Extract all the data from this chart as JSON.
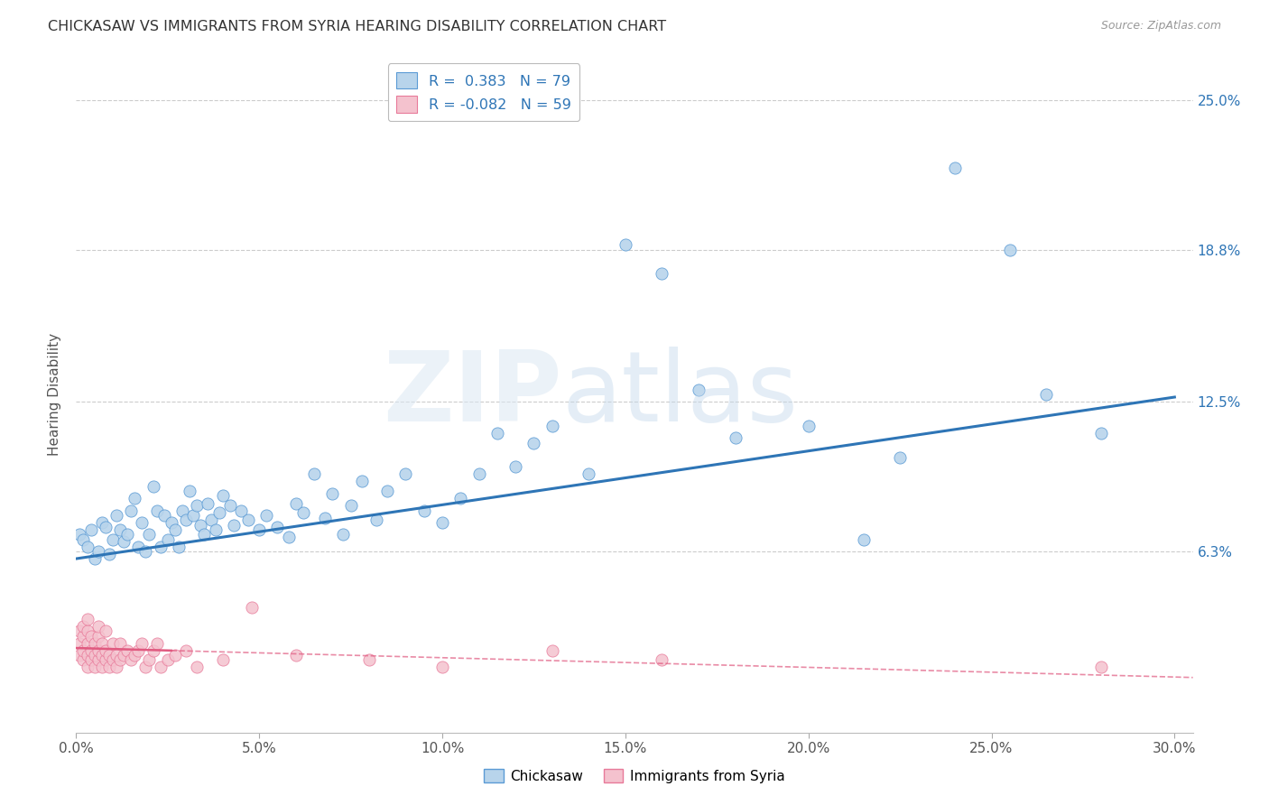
{
  "title": "CHICKASAW VS IMMIGRANTS FROM SYRIA HEARING DISABILITY CORRELATION CHART",
  "source": "Source: ZipAtlas.com",
  "xlim": [
    0.0,
    0.305
  ],
  "ylim": [
    -0.012,
    0.268
  ],
  "chickasaw_R": 0.383,
  "chickasaw_N": 79,
  "syria_R": -0.082,
  "syria_N": 59,
  "chickasaw_color": "#b8d4eb",
  "chickasaw_edge_color": "#5b9bd5",
  "chickasaw_line_color": "#2e75b6",
  "syria_color": "#f4c2ce",
  "syria_edge_color": "#e87a9a",
  "syria_line_color": "#e05a80",
  "legend_chickasaw": "Chickasaw",
  "legend_syria": "Immigrants from Syria",
  "ylabel": "Hearing Disability",
  "background_color": "#ffffff",
  "grid_color": "#cccccc",
  "ytick_vals": [
    0.063,
    0.125,
    0.188,
    0.25
  ],
  "ytick_labels": [
    "6.3%",
    "12.5%",
    "18.8%",
    "25.0%"
  ],
  "xtick_vals": [
    0.0,
    0.05,
    0.1,
    0.15,
    0.2,
    0.25,
    0.3
  ],
  "xtick_labels": [
    "0.0%",
    "5.0%",
    "10.0%",
    "15.0%",
    "20.0%",
    "25.0%",
    "30.0%"
  ],
  "chickasaw_x": [
    0.001,
    0.002,
    0.003,
    0.004,
    0.005,
    0.006,
    0.007,
    0.008,
    0.009,
    0.01,
    0.011,
    0.012,
    0.013,
    0.014,
    0.015,
    0.016,
    0.017,
    0.018,
    0.019,
    0.02,
    0.021,
    0.022,
    0.023,
    0.024,
    0.025,
    0.026,
    0.027,
    0.028,
    0.029,
    0.03,
    0.031,
    0.032,
    0.033,
    0.034,
    0.035,
    0.036,
    0.037,
    0.038,
    0.039,
    0.04,
    0.042,
    0.043,
    0.045,
    0.047,
    0.05,
    0.052,
    0.055,
    0.058,
    0.06,
    0.062,
    0.065,
    0.068,
    0.07,
    0.073,
    0.075,
    0.078,
    0.082,
    0.085,
    0.09,
    0.095,
    0.1,
    0.105,
    0.11,
    0.115,
    0.12,
    0.125,
    0.13,
    0.14,
    0.15,
    0.16,
    0.17,
    0.18,
    0.2,
    0.215,
    0.225,
    0.24,
    0.255,
    0.265,
    0.28
  ],
  "chickasaw_y": [
    0.07,
    0.068,
    0.065,
    0.072,
    0.06,
    0.063,
    0.075,
    0.073,
    0.062,
    0.068,
    0.078,
    0.072,
    0.067,
    0.07,
    0.08,
    0.085,
    0.065,
    0.075,
    0.063,
    0.07,
    0.09,
    0.08,
    0.065,
    0.078,
    0.068,
    0.075,
    0.072,
    0.065,
    0.08,
    0.076,
    0.088,
    0.078,
    0.082,
    0.074,
    0.07,
    0.083,
    0.076,
    0.072,
    0.079,
    0.086,
    0.082,
    0.074,
    0.08,
    0.076,
    0.072,
    0.078,
    0.073,
    0.069,
    0.083,
    0.079,
    0.095,
    0.077,
    0.087,
    0.07,
    0.082,
    0.092,
    0.076,
    0.088,
    0.095,
    0.08,
    0.075,
    0.085,
    0.095,
    0.112,
    0.098,
    0.108,
    0.115,
    0.095,
    0.19,
    0.178,
    0.13,
    0.11,
    0.115,
    0.068,
    0.102,
    0.222,
    0.188,
    0.128,
    0.112
  ],
  "syria_x": [
    0.001,
    0.001,
    0.001,
    0.002,
    0.002,
    0.002,
    0.002,
    0.003,
    0.003,
    0.003,
    0.003,
    0.003,
    0.004,
    0.004,
    0.004,
    0.005,
    0.005,
    0.005,
    0.006,
    0.006,
    0.006,
    0.006,
    0.007,
    0.007,
    0.007,
    0.008,
    0.008,
    0.008,
    0.009,
    0.009,
    0.01,
    0.01,
    0.011,
    0.011,
    0.012,
    0.012,
    0.013,
    0.014,
    0.015,
    0.016,
    0.017,
    0.018,
    0.019,
    0.02,
    0.021,
    0.022,
    0.023,
    0.025,
    0.027,
    0.03,
    0.033,
    0.04,
    0.048,
    0.06,
    0.08,
    0.1,
    0.13,
    0.16,
    0.28
  ],
  "syria_y": [
    0.02,
    0.025,
    0.03,
    0.018,
    0.022,
    0.028,
    0.032,
    0.015,
    0.02,
    0.025,
    0.03,
    0.035,
    0.018,
    0.022,
    0.028,
    0.015,
    0.02,
    0.025,
    0.018,
    0.022,
    0.028,
    0.032,
    0.015,
    0.02,
    0.025,
    0.018,
    0.022,
    0.03,
    0.015,
    0.02,
    0.018,
    0.025,
    0.015,
    0.02,
    0.018,
    0.025,
    0.02,
    0.022,
    0.018,
    0.02,
    0.022,
    0.025,
    0.015,
    0.018,
    0.022,
    0.025,
    0.015,
    0.018,
    0.02,
    0.022,
    0.015,
    0.018,
    0.04,
    0.02,
    0.018,
    0.015,
    0.022,
    0.018,
    0.015
  ]
}
